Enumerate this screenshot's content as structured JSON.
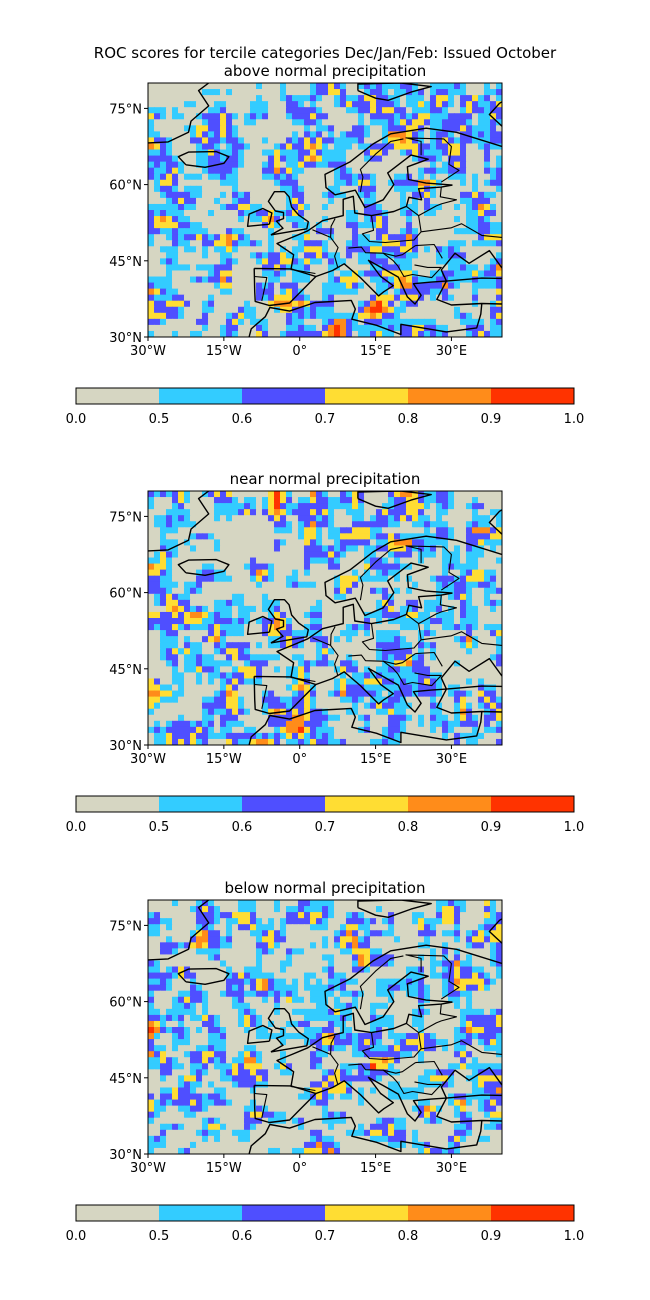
{
  "figure": {
    "title": "ROC scores for tercile categories Dec/Jan/Feb: Issued October",
    "panels": [
      {
        "subtitle": "above normal precipitation",
        "seed": 11
      },
      {
        "subtitle": "near normal precipitation",
        "seed": 29
      },
      {
        "subtitle": "below normal precipitation",
        "seed": 53
      }
    ]
  },
  "map": {
    "lon_range": [
      -30,
      40
    ],
    "lat_range": [
      30,
      80
    ],
    "lon_ticks": [
      "30°W",
      "15°W",
      "0°",
      "15°E",
      "30°E"
    ],
    "lat_ticks": [
      "75°N",
      "60°N",
      "45°N",
      "30°N"
    ],
    "lon_tick_values": [
      -30,
      -15,
      0,
      15,
      30
    ],
    "lat_tick_values": [
      75,
      60,
      45,
      30
    ]
  },
  "colorbar": {
    "bounds": [
      0.0,
      0.5,
      0.6,
      0.7,
      0.8,
      0.9,
      1.0
    ],
    "labels": [
      "0.0",
      "0.5",
      "0.6",
      "0.7",
      "0.8",
      "0.9",
      "1.0"
    ],
    "colors": [
      "#d6d6c2",
      "#33ccff",
      "#4f4fff",
      "#ffdd33",
      "#ff8c1a",
      "#ff3300"
    ]
  },
  "colors": {
    "land_outline": "#000000",
    "frame": "#000000"
  }
}
